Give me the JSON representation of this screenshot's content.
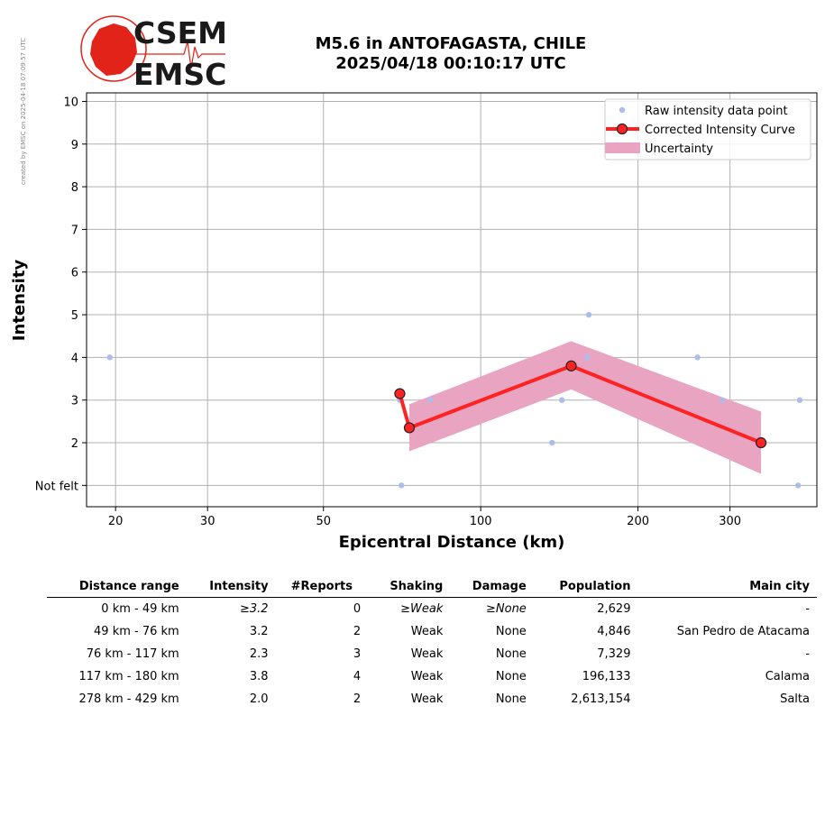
{
  "side_note": "created by EMSC on 2025-04-18 07:09:57 UTC",
  "logo": {
    "line1": "CSEM",
    "line2": "EMSC",
    "colors": {
      "globe": "#e2231a",
      "text": "#1a1a1a"
    }
  },
  "title": {
    "line1": "M5.6 in ANTOFAGASTA, CHILE",
    "line2": "2025/04/18 00:10:17 UTC"
  },
  "chart_data": {
    "type": "scatter",
    "x_scale": "log",
    "xlabel": "Epicentral Distance (km)",
    "ylabel": "Intensity",
    "xlim": [
      17.6,
      440
    ],
    "ylim": [
      0.5,
      10.2
    ],
    "x_ticks": [
      20,
      30,
      50,
      100,
      200,
      300
    ],
    "y_ticks": [
      {
        "value": 1,
        "label": "Not felt"
      },
      {
        "value": 2,
        "label": "2"
      },
      {
        "value": 3,
        "label": "3"
      },
      {
        "value": 4,
        "label": "4"
      },
      {
        "value": 5,
        "label": "5"
      },
      {
        "value": 6,
        "label": "6"
      },
      {
        "value": 7,
        "label": "7"
      },
      {
        "value": 8,
        "label": "8"
      },
      {
        "value": 9,
        "label": "9"
      },
      {
        "value": 10,
        "label": "10"
      }
    ],
    "grid": true,
    "legend_position": "top-right",
    "legend": [
      {
        "label": "Raw intensity data point",
        "kind": "dot",
        "color": "#aebcec"
      },
      {
        "label": "Corrected Intensity Curve",
        "kind": "line-marker",
        "color": "#ff2222"
      },
      {
        "label": "Uncertainty",
        "kind": "band",
        "color": "#e8a4c0"
      }
    ],
    "raw_points": [
      {
        "x": 19.5,
        "y": 4
      },
      {
        "x": 70,
        "y": 3
      },
      {
        "x": 70.5,
        "y": 1
      },
      {
        "x": 80,
        "y": 3
      },
      {
        "x": 137,
        "y": 2
      },
      {
        "x": 143,
        "y": 3
      },
      {
        "x": 160,
        "y": 4
      },
      {
        "x": 161,
        "y": 5
      },
      {
        "x": 260,
        "y": 4
      },
      {
        "x": 290,
        "y": 3
      },
      {
        "x": 405,
        "y": 1
      },
      {
        "x": 408,
        "y": 3
      }
    ],
    "corrected_curve": [
      {
        "x": 70,
        "y": 3.15
      },
      {
        "x": 73,
        "y": 2.35
      },
      {
        "x": 149,
        "y": 3.8
      },
      {
        "x": 344,
        "y": 2.0
      }
    ],
    "uncertainty_band": {
      "x": [
        73,
        149,
        344
      ],
      "upper": [
        2.9,
        4.38,
        2.73
      ],
      "lower": [
        1.8,
        3.25,
        1.27
      ]
    },
    "colors": {
      "raw": "#aebcec",
      "curve": "#ff2222",
      "marker_edge": "#222222",
      "band": "#e8a4c0",
      "grid": "#b0b0b0"
    }
  },
  "table": {
    "headers": [
      "Distance range",
      "Intensity",
      "#Reports",
      "Shaking",
      "Damage",
      "Population",
      "Main city"
    ],
    "rows": [
      {
        "range": "0 km -   49 km",
        "intensity": "≥3.2",
        "reports": "0",
        "shaking": "≥Weak",
        "damage": "≥None",
        "population": "2,629",
        "city": "-",
        "italic": true
      },
      {
        "range": "49 km -   76 km",
        "intensity": "3.2",
        "reports": "2",
        "shaking": "Weak",
        "damage": "None",
        "population": "4,846",
        "city": "San Pedro de Atacama",
        "italic": false
      },
      {
        "range": "76 km -  117 km",
        "intensity": "2.3",
        "reports": "3",
        "shaking": "Weak",
        "damage": "None",
        "population": "7,329",
        "city": "-",
        "italic": false
      },
      {
        "range": "117 km -  180 km",
        "intensity": "3.8",
        "reports": "4",
        "shaking": "Weak",
        "damage": "None",
        "population": "196,133",
        "city": "Calama",
        "italic": false
      },
      {
        "range": "278 km -  429 km",
        "intensity": "2.0",
        "reports": "2",
        "shaking": "Weak",
        "damage": "None",
        "population": "2,613,154",
        "city": "Salta",
        "italic": false
      }
    ]
  }
}
